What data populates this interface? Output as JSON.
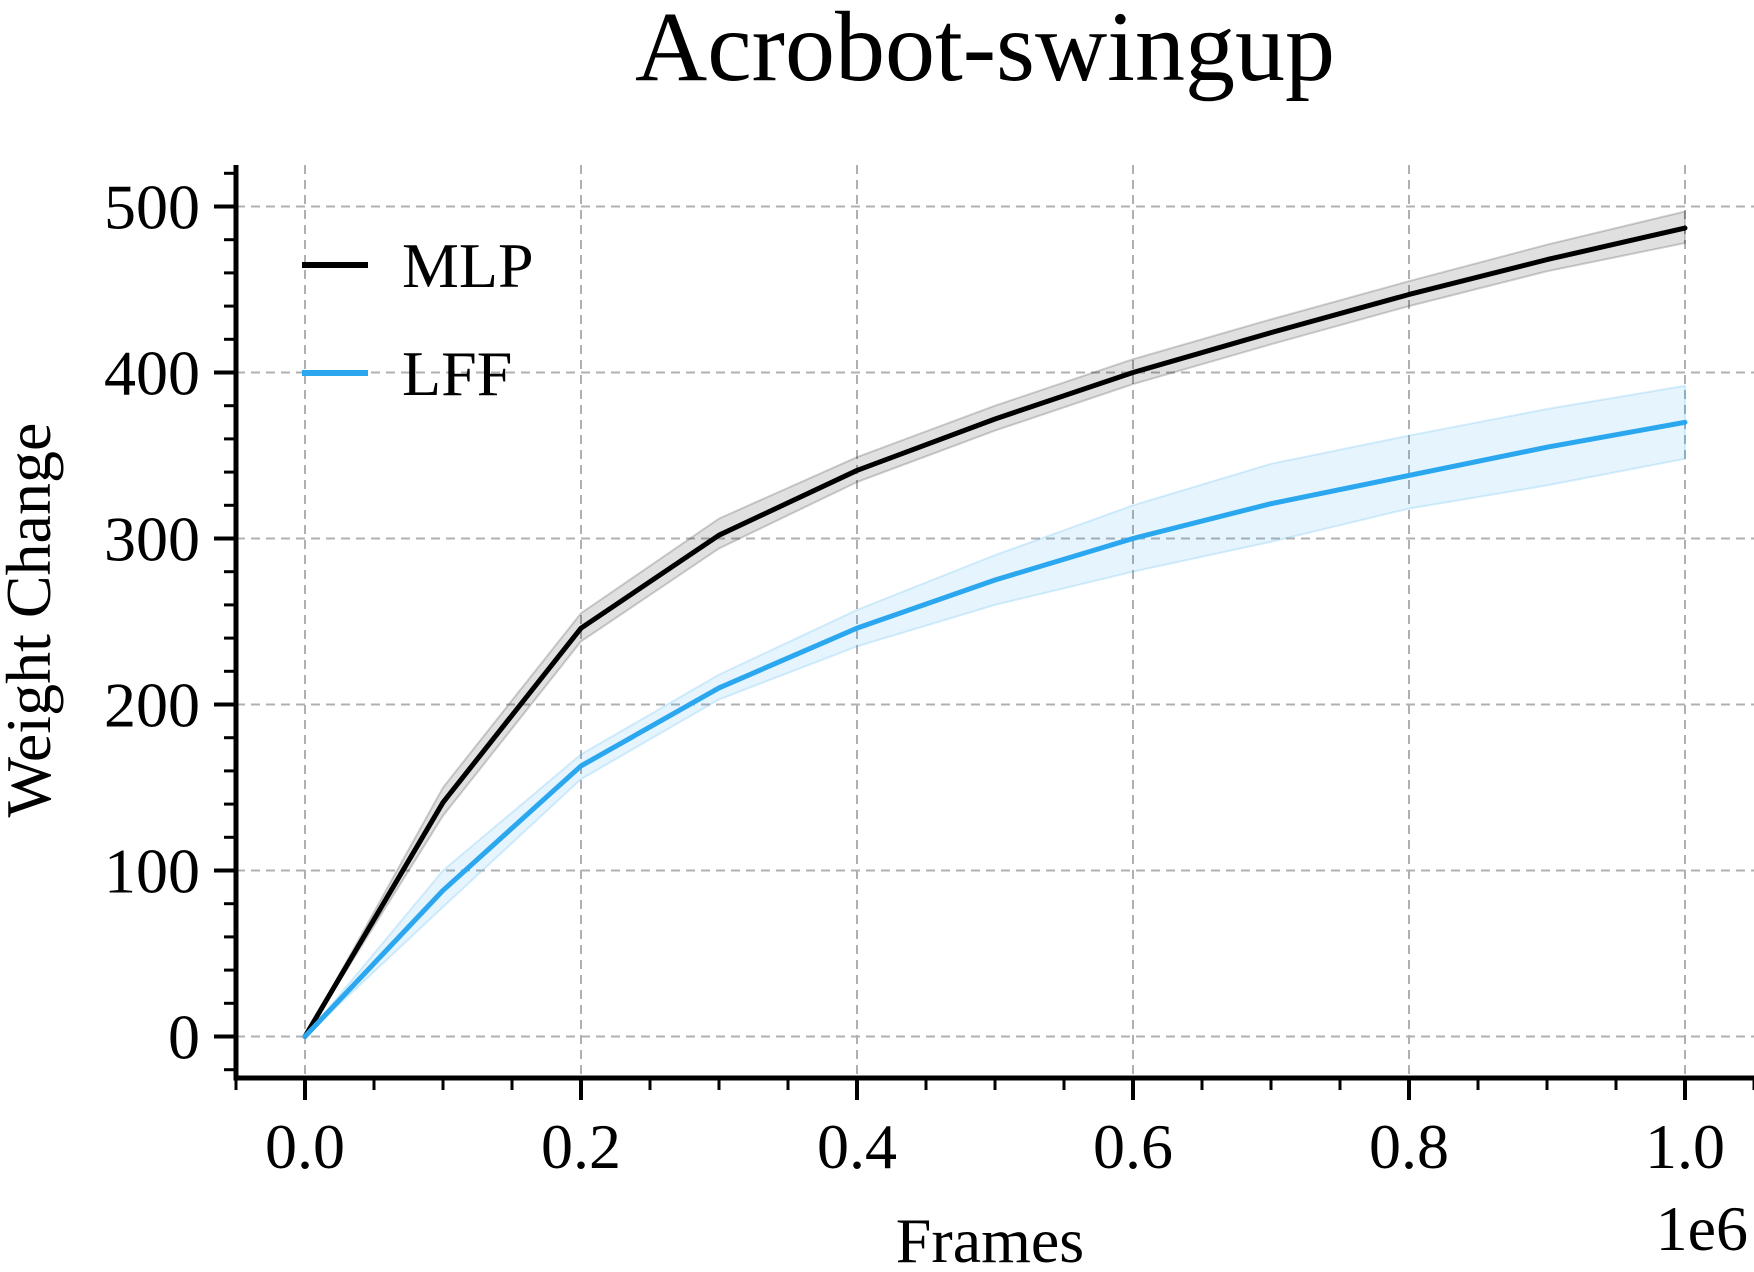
{
  "chart_data": {
    "type": "line",
    "title": "Acrobot-swingup",
    "xlabel": "Frames",
    "ylabel": "Weight Change",
    "x_offset_text": "1e6",
    "xlim": [
      -0.05,
      1.05
    ],
    "ylim": [
      -25,
      525
    ],
    "x_ticks": [
      0.0,
      0.2,
      0.4,
      0.6,
      0.8,
      1.0
    ],
    "x_tick_labels": [
      "0.0",
      "0.2",
      "0.4",
      "0.6",
      "0.8",
      "1.0"
    ],
    "y_ticks": [
      0,
      100,
      200,
      300,
      400,
      500
    ],
    "y_tick_labels": [
      "0",
      "100",
      "200",
      "300",
      "400",
      "500"
    ],
    "grid": true,
    "legend": "upper-left",
    "x": [
      0.0,
      0.1,
      0.2,
      0.3,
      0.4,
      0.5,
      0.6,
      0.7,
      0.8,
      0.9,
      1.0
    ],
    "series": [
      {
        "name": "MLP",
        "color": "#000000",
        "band_color": "#000000",
        "values": [
          0,
          141,
          246,
          302,
          341,
          372,
          400,
          424,
          447,
          468,
          487
        ],
        "lower": [
          0,
          133,
          238,
          294,
          334,
          365,
          393,
          417,
          440,
          461,
          478
        ],
        "upper": [
          0,
          150,
          255,
          312,
          349,
          380,
          408,
          432,
          455,
          477,
          497
        ]
      },
      {
        "name": "LFF",
        "color": "#2aa7ef",
        "band_color": "#2aa7ef",
        "values": [
          0,
          88,
          163,
          210,
          246,
          275,
          300,
          321,
          338,
          355,
          370
        ],
        "lower": [
          0,
          78,
          155,
          203,
          235,
          260,
          280,
          298,
          318,
          332,
          348
        ],
        "upper": [
          0,
          100,
          170,
          218,
          257,
          290,
          320,
          345,
          362,
          378,
          392
        ]
      }
    ]
  }
}
